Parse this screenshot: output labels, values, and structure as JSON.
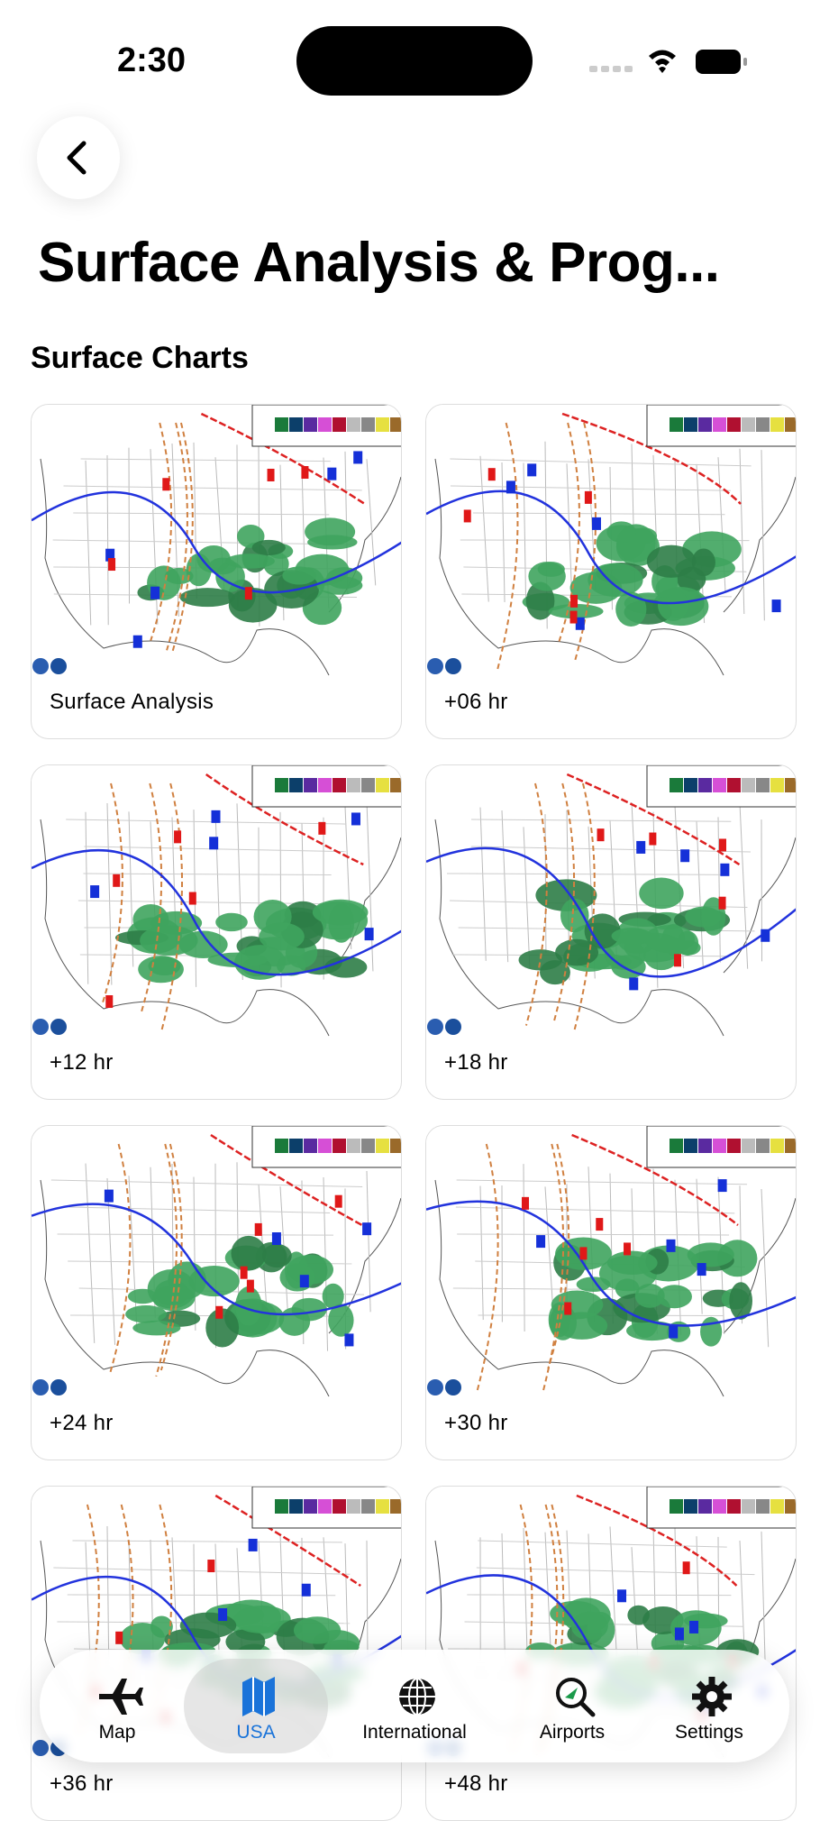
{
  "status": {
    "time": "2:30"
  },
  "title": "Surface Analysis & Prog...",
  "section": "Surface Charts",
  "charts": [
    {
      "label": "Surface Analysis"
    },
    {
      "label": "+06 hr"
    },
    {
      "label": "+12 hr"
    },
    {
      "label": "+18 hr"
    },
    {
      "label": "+24 hr"
    },
    {
      "label": "+30 hr"
    },
    {
      "label": "+36 hr"
    },
    {
      "label": "+48 hr"
    }
  ],
  "tabs": [
    {
      "label": "Map",
      "selected": false
    },
    {
      "label": "USA",
      "selected": true
    },
    {
      "label": "International",
      "selected": false
    },
    {
      "label": "Airports",
      "selected": false
    },
    {
      "label": "Settings",
      "selected": false
    }
  ]
}
